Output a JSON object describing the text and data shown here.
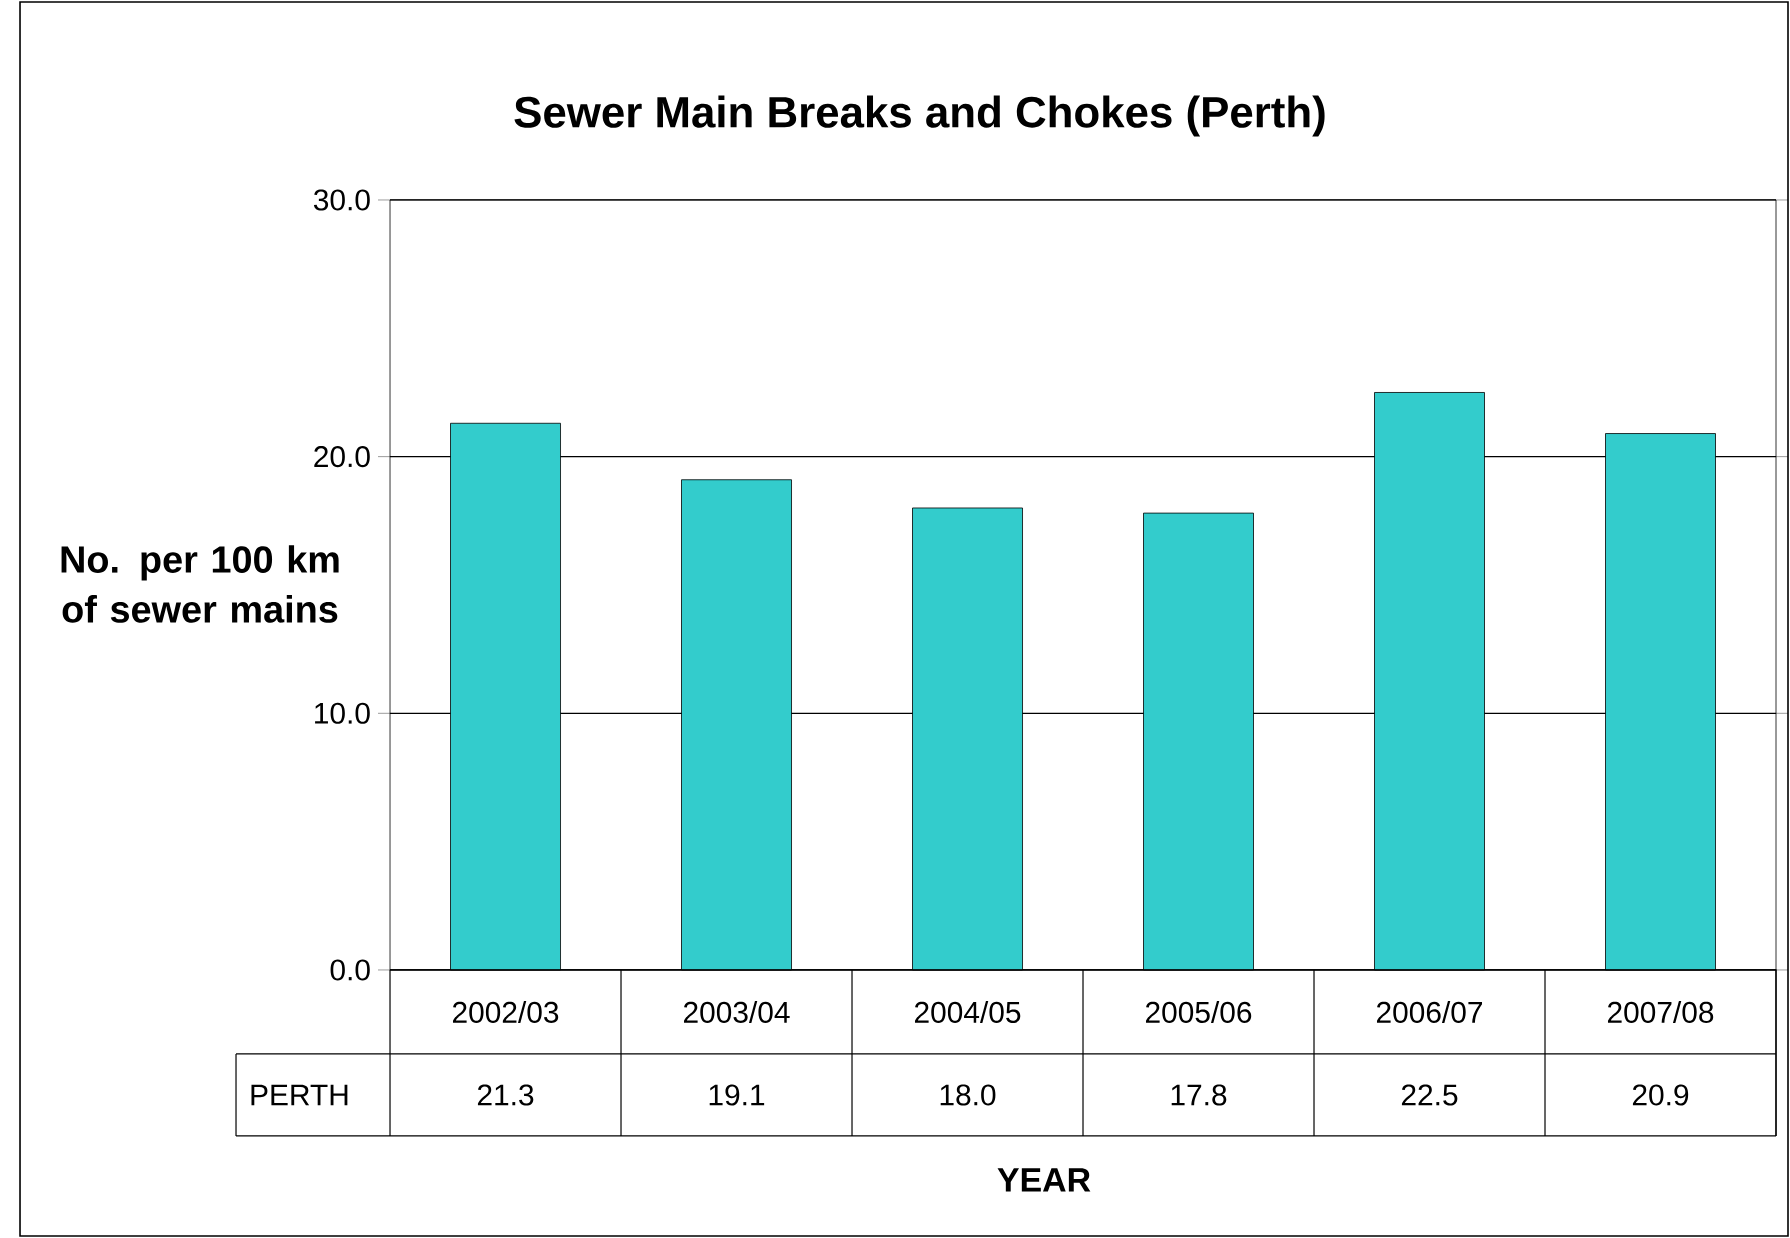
{
  "chart_data": {
    "type": "bar",
    "title": "Sewer Main Breaks and Chokes (Perth)",
    "xlabel": "YEAR",
    "ylabel": "No. per 100 km of sewer mains",
    "categories": [
      "2002/03",
      "2003/04",
      "2004/05",
      "2005/06",
      "2006/07",
      "2007/08"
    ],
    "series": [
      {
        "name": "PERTH",
        "color": "#33cccc",
        "values": [
          21.3,
          19.1,
          18.0,
          17.8,
          22.5,
          20.9
        ],
        "value_labels": [
          "21.3",
          "19.1",
          "18.0",
          "17.8",
          "22.5",
          "20.9"
        ]
      }
    ],
    "ylim": [
      0,
      30
    ],
    "yticks": [
      {
        "value": 0,
        "label": "0.0"
      },
      {
        "value": 10,
        "label": "10.0"
      },
      {
        "value": 20,
        "label": "20.0"
      },
      {
        "value": 30,
        "label": "30.0"
      }
    ],
    "grid": "y"
  }
}
